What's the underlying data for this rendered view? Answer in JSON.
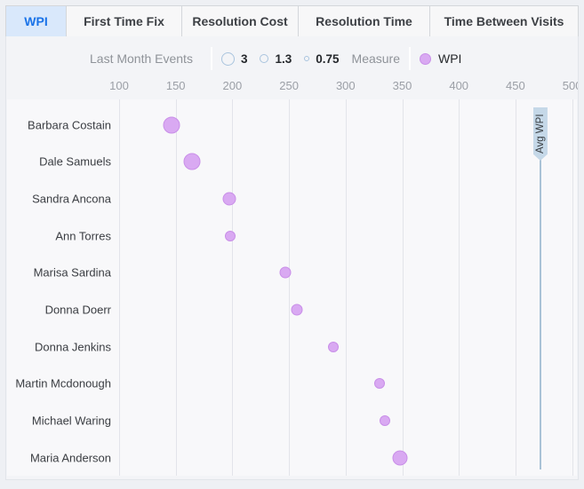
{
  "tabs": [
    {
      "label": "WPI",
      "active": true
    },
    {
      "label": "First Time Fix",
      "active": false
    },
    {
      "label": "Resolution Cost",
      "active": false
    },
    {
      "label": "Resolution Time",
      "active": false
    },
    {
      "label": "Time Between Visits",
      "active": false
    }
  ],
  "legend": {
    "sizes_title": "Last Month Events",
    "sizes": [
      "3",
      "1.3",
      "0.75"
    ],
    "measure_title": "Measure",
    "measure_value": "WPI"
  },
  "colors": {
    "accent_blue": "#1a73e8",
    "active_tab_bg": "#d9e8fb",
    "bubble_fill": "#d9a9f2",
    "bubble_stroke": "#c98fe8",
    "avg_line": "#a9c2d6",
    "avg_flag_bg": "#c5d8e8",
    "gridline": "#e3e4ea"
  },
  "chart_data": {
    "type": "scatter",
    "subtype": "bubble-dot-plot",
    "title": "WPI",
    "xlabel": "",
    "ylabel": "",
    "x_ticks": [
      100,
      150,
      200,
      250,
      300,
      350,
      400,
      450,
      500
    ],
    "xlim": [
      95,
      507
    ],
    "grid": "vertical",
    "legend_position": "top",
    "series_name": "WPI",
    "categories": [
      "Barbara Costain",
      "Dale Samuels",
      "Sandra Ancona",
      "Ann Torres",
      "Marisa Sardina",
      "Donna Doerr",
      "Donna Jenkins",
      "Martin Mcdonough",
      "Michael Waring",
      "Maria Anderson"
    ],
    "points": [
      {
        "name": "Barbara Costain",
        "wpi": 146,
        "bubble_radius_px": 9.5
      },
      {
        "name": "Dale Samuels",
        "wpi": 164,
        "bubble_radius_px": 9.5
      },
      {
        "name": "Sandra Ancona",
        "wpi": 197,
        "bubble_radius_px": 7.5
      },
      {
        "name": "Ann Torres",
        "wpi": 198,
        "bubble_radius_px": 6
      },
      {
        "name": "Marisa Sardina",
        "wpi": 247,
        "bubble_radius_px": 6.5
      },
      {
        "name": "Donna Doerr",
        "wpi": 257,
        "bubble_radius_px": 6.5
      },
      {
        "name": "Donna Jenkins",
        "wpi": 289,
        "bubble_radius_px": 6
      },
      {
        "name": "Martin Mcdonough",
        "wpi": 330,
        "bubble_radius_px": 6
      },
      {
        "name": "Michael Waring",
        "wpi": 335,
        "bubble_radius_px": 6
      },
      {
        "name": "Maria Anderson",
        "wpi": 348,
        "bubble_radius_px": 8.5
      }
    ],
    "avg_line": {
      "label": "Avg WPI",
      "value": 472
    },
    "size_legend": {
      "title": "Last Month Events",
      "values": [
        3,
        1.3,
        0.75
      ]
    }
  }
}
